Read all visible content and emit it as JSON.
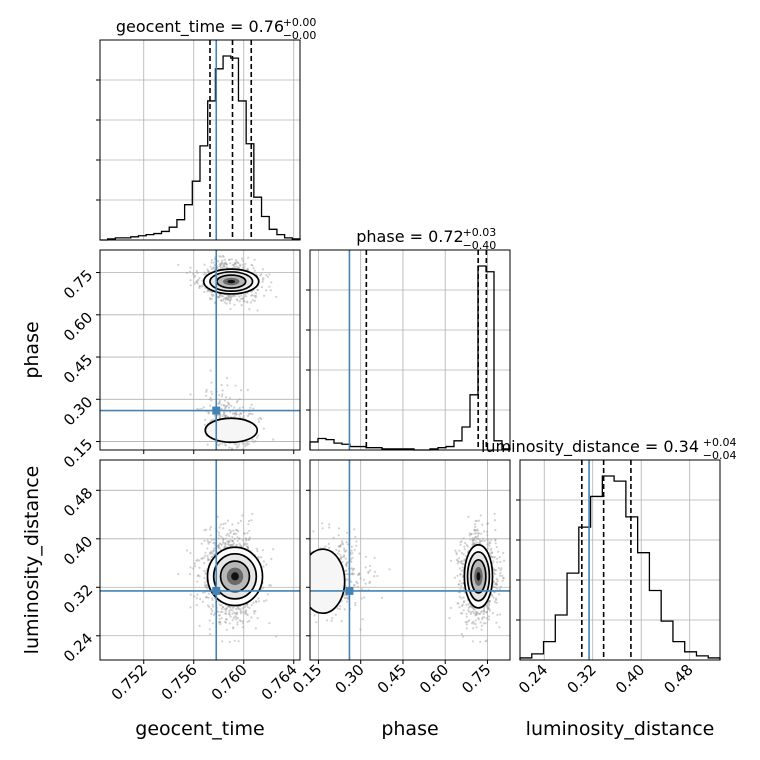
{
  "chart_data": {
    "type": "corner",
    "parameters": [
      "geocent_time",
      "phase",
      "luminosity_distance"
    ],
    "truths": {
      "geocent_time": 0.7578,
      "phase": 0.26,
      "luminosity_distance": 0.314
    },
    "truth_color": "#4682b4",
    "titles": [
      {
        "param": "geocent_time",
        "prefix": "geocent_time = 0.76",
        "sup": "+0.00",
        "sub": "−0.00"
      },
      {
        "param": "phase",
        "prefix": "phase = 0.72",
        "sup": "+0.03",
        "sub": "−0.40"
      },
      {
        "param": "luminosity_distance",
        "prefix": "luminosity_distance = 0.34",
        "sup": "+0.04",
        "sub": "−0.04"
      }
    ],
    "axis_labels": {
      "geocent_time": "geocent_time",
      "phase": "phase",
      "luminosity_distance": "luminosity_distance"
    },
    "ranges": {
      "geocent_time": [
        0.7485,
        0.7645
      ],
      "phase": [
        0.12,
        0.83
      ],
      "luminosity_distance": [
        0.2,
        0.53
      ]
    },
    "ticks": {
      "geocent_time": [
        "0.752",
        "0.756",
        "0.760",
        "0.764"
      ],
      "phase": [
        "0.15",
        "0.30",
        "0.45",
        "0.60",
        "0.75"
      ],
      "luminosity_distance": [
        "0.24",
        "0.32",
        "0.40",
        "0.48"
      ]
    },
    "quantiles": {
      "geocent_time": [
        0.7573,
        0.7591,
        0.7606
      ],
      "phase": [
        0.32,
        0.717,
        0.746
      ],
      "luminosity_distance": [
        0.302,
        0.338,
        0.383
      ]
    },
    "histograms": {
      "geocent_time": {
        "range": [
          0.7485,
          0.7645
        ],
        "counts": [
          0,
          1,
          2,
          2,
          3,
          4,
          5,
          6,
          8,
          12,
          19,
          33,
          55,
          88,
          130,
          160,
          172,
          170,
          130,
          90,
          40,
          22,
          10,
          5,
          2,
          1
        ]
      },
      "phase": {
        "range": [
          0.12,
          0.83
        ],
        "counts": [
          7,
          10,
          9,
          6,
          5,
          3,
          3,
          2,
          2,
          1,
          1,
          1,
          1,
          0,
          0,
          1,
          2,
          3,
          8,
          20,
          48,
          160,
          155,
          8,
          1
        ]
      },
      "luminosity_distance": {
        "range": [
          0.2,
          0.53
        ],
        "counts": [
          2,
          6,
          18,
          44,
          85,
          130,
          160,
          180,
          175,
          140,
          105,
          68,
          38,
          18,
          8,
          4,
          2
        ]
      }
    },
    "grid": true
  }
}
